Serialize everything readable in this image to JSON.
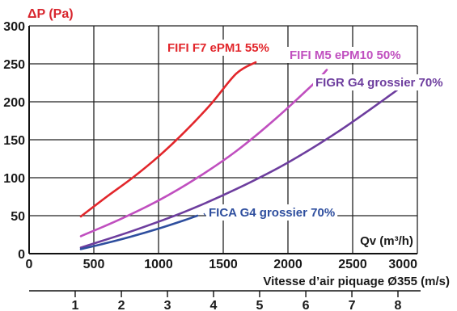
{
  "chart_data": {
    "type": "line",
    "ylabel": "ΔP (Pa)",
    "xlabel": "Qv (m³/h)",
    "xlim": [
      0,
      3000
    ],
    "ylim": [
      0,
      300
    ],
    "grid": true,
    "x_ticks": [
      "0",
      "500",
      "1000",
      "1500",
      "2000",
      "2500",
      "3000"
    ],
    "y_ticks": [
      "0",
      "50",
      "100",
      "150",
      "200",
      "250",
      "300"
    ],
    "secondary_axis": {
      "title": "Vitesse d’air piquage Ø355 (m/s)",
      "ticks": [
        "1",
        "2",
        "3",
        "4",
        "5",
        "6",
        "7",
        "8"
      ],
      "tick_values_qv": [
        356,
        713,
        1069,
        1425,
        1781,
        2138,
        2494,
        2850
      ]
    },
    "series": [
      {
        "name": "FIFI F7 ePM1 55%",
        "color": "#e2262b",
        "x": [
          400,
          600,
          800,
          1000,
          1200,
          1400,
          1600,
          1750
        ],
        "y": [
          49,
          75,
          100,
          128,
          160,
          196,
          237,
          252
        ]
      },
      {
        "name": "FIFI M5 ePM10 50%",
        "color": "#c04fbf",
        "x": [
          400,
          700,
          1000,
          1300,
          1600,
          1900,
          2200,
          2300
        ],
        "y": [
          23,
          45,
          70,
          100,
          135,
          177,
          224,
          242
        ]
      },
      {
        "name": "FIGR G4 grossier 70%",
        "color": "#6d3d9e",
        "x": [
          400,
          800,
          1200,
          1600,
          2000,
          2400,
          2800,
          2850
        ],
        "y": [
          8,
          30,
          55,
          85,
          120,
          162,
          210,
          217
        ]
      },
      {
        "name": "FICA G4 grossier 70%",
        "color": "#2e4e9e",
        "x": [
          400,
          600,
          800,
          1000,
          1200,
          1300
        ],
        "y": [
          6,
          14,
          23,
          33,
          44,
          50
        ]
      }
    ]
  }
}
